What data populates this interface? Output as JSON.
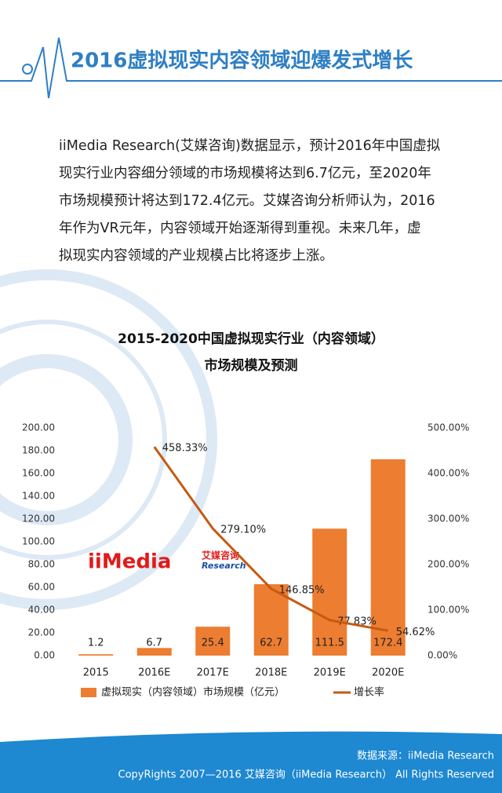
{
  "header": {
    "title": "2016虚拟现实内容领域迎爆发式增长"
  },
  "body": {
    "lines": [
      "iiMedia Research(艾媒咨询)数据显示，预计2016年中国虚拟",
      "现实行业内容细分领域的市场规模将达到6.7亿元，至2020年",
      "市场规模预计将达到172.4亿元。艾媒咨询分析师认为，2016",
      "年作为VR元年，内容领域开始逐渐得到重视。未来几年，虚",
      "拟现实内容领域的产业规模占比将逐步上涨。"
    ]
  },
  "chart_data": {
    "type": "bar",
    "title": "2015-2020中国虚拟现实行业（内容领域）",
    "subtitle": "市场规模及预测",
    "categories": [
      "2015",
      "2016E",
      "2017E",
      "2018E",
      "2019E",
      "2020E"
    ],
    "series": [
      {
        "name": "虚拟现实（内容领域）市场规模（亿元）",
        "color": "#ed7d31",
        "values": [
          1.2,
          6.7,
          25.4,
          62.7,
          111.5,
          172.4
        ]
      },
      {
        "name": "增长率",
        "color": "#c55a11",
        "axis": "y2",
        "values": [
          null,
          458.33,
          279.1,
          146.85,
          77.83,
          54.62
        ],
        "value_labels": [
          null,
          "458.33%",
          "279.10%",
          "146.85%",
          "77.83%",
          "54.62%"
        ]
      }
    ],
    "ylim": [
      0,
      200
    ],
    "yticks": [
      {
        "value": 0,
        "label": "0.00"
      },
      {
        "value": 20,
        "label": "20.00"
      },
      {
        "value": 40,
        "label": "40.00"
      },
      {
        "value": 60,
        "label": "60.00"
      },
      {
        "value": 80,
        "label": "80.00"
      },
      {
        "value": 100,
        "label": "100.00"
      },
      {
        "value": 120,
        "label": "120.00"
      },
      {
        "value": 140,
        "label": "140.00"
      },
      {
        "value": 160,
        "label": "160.00"
      },
      {
        "value": 180,
        "label": "180.00"
      },
      {
        "value": 200,
        "label": "200.00"
      }
    ],
    "y2lim": [
      0,
      500
    ],
    "y2ticks": [
      {
        "value": 0,
        "label": "0.00%"
      },
      {
        "value": 100,
        "label": "100.00%"
      },
      {
        "value": 200,
        "label": "200.00%"
      },
      {
        "value": 300,
        "label": "300.00%"
      },
      {
        "value": 400,
        "label": "400.00%"
      },
      {
        "value": 500,
        "label": "500.00%"
      }
    ],
    "watermark": [
      "iiMedia",
      "艾媒咨询",
      "Research"
    ]
  },
  "footer": {
    "source": "数据来源：iiMedia Research",
    "copyright": "CopyRights 2007—2016 艾媒咨询（iiMedia Research） All Rights Reserved"
  }
}
